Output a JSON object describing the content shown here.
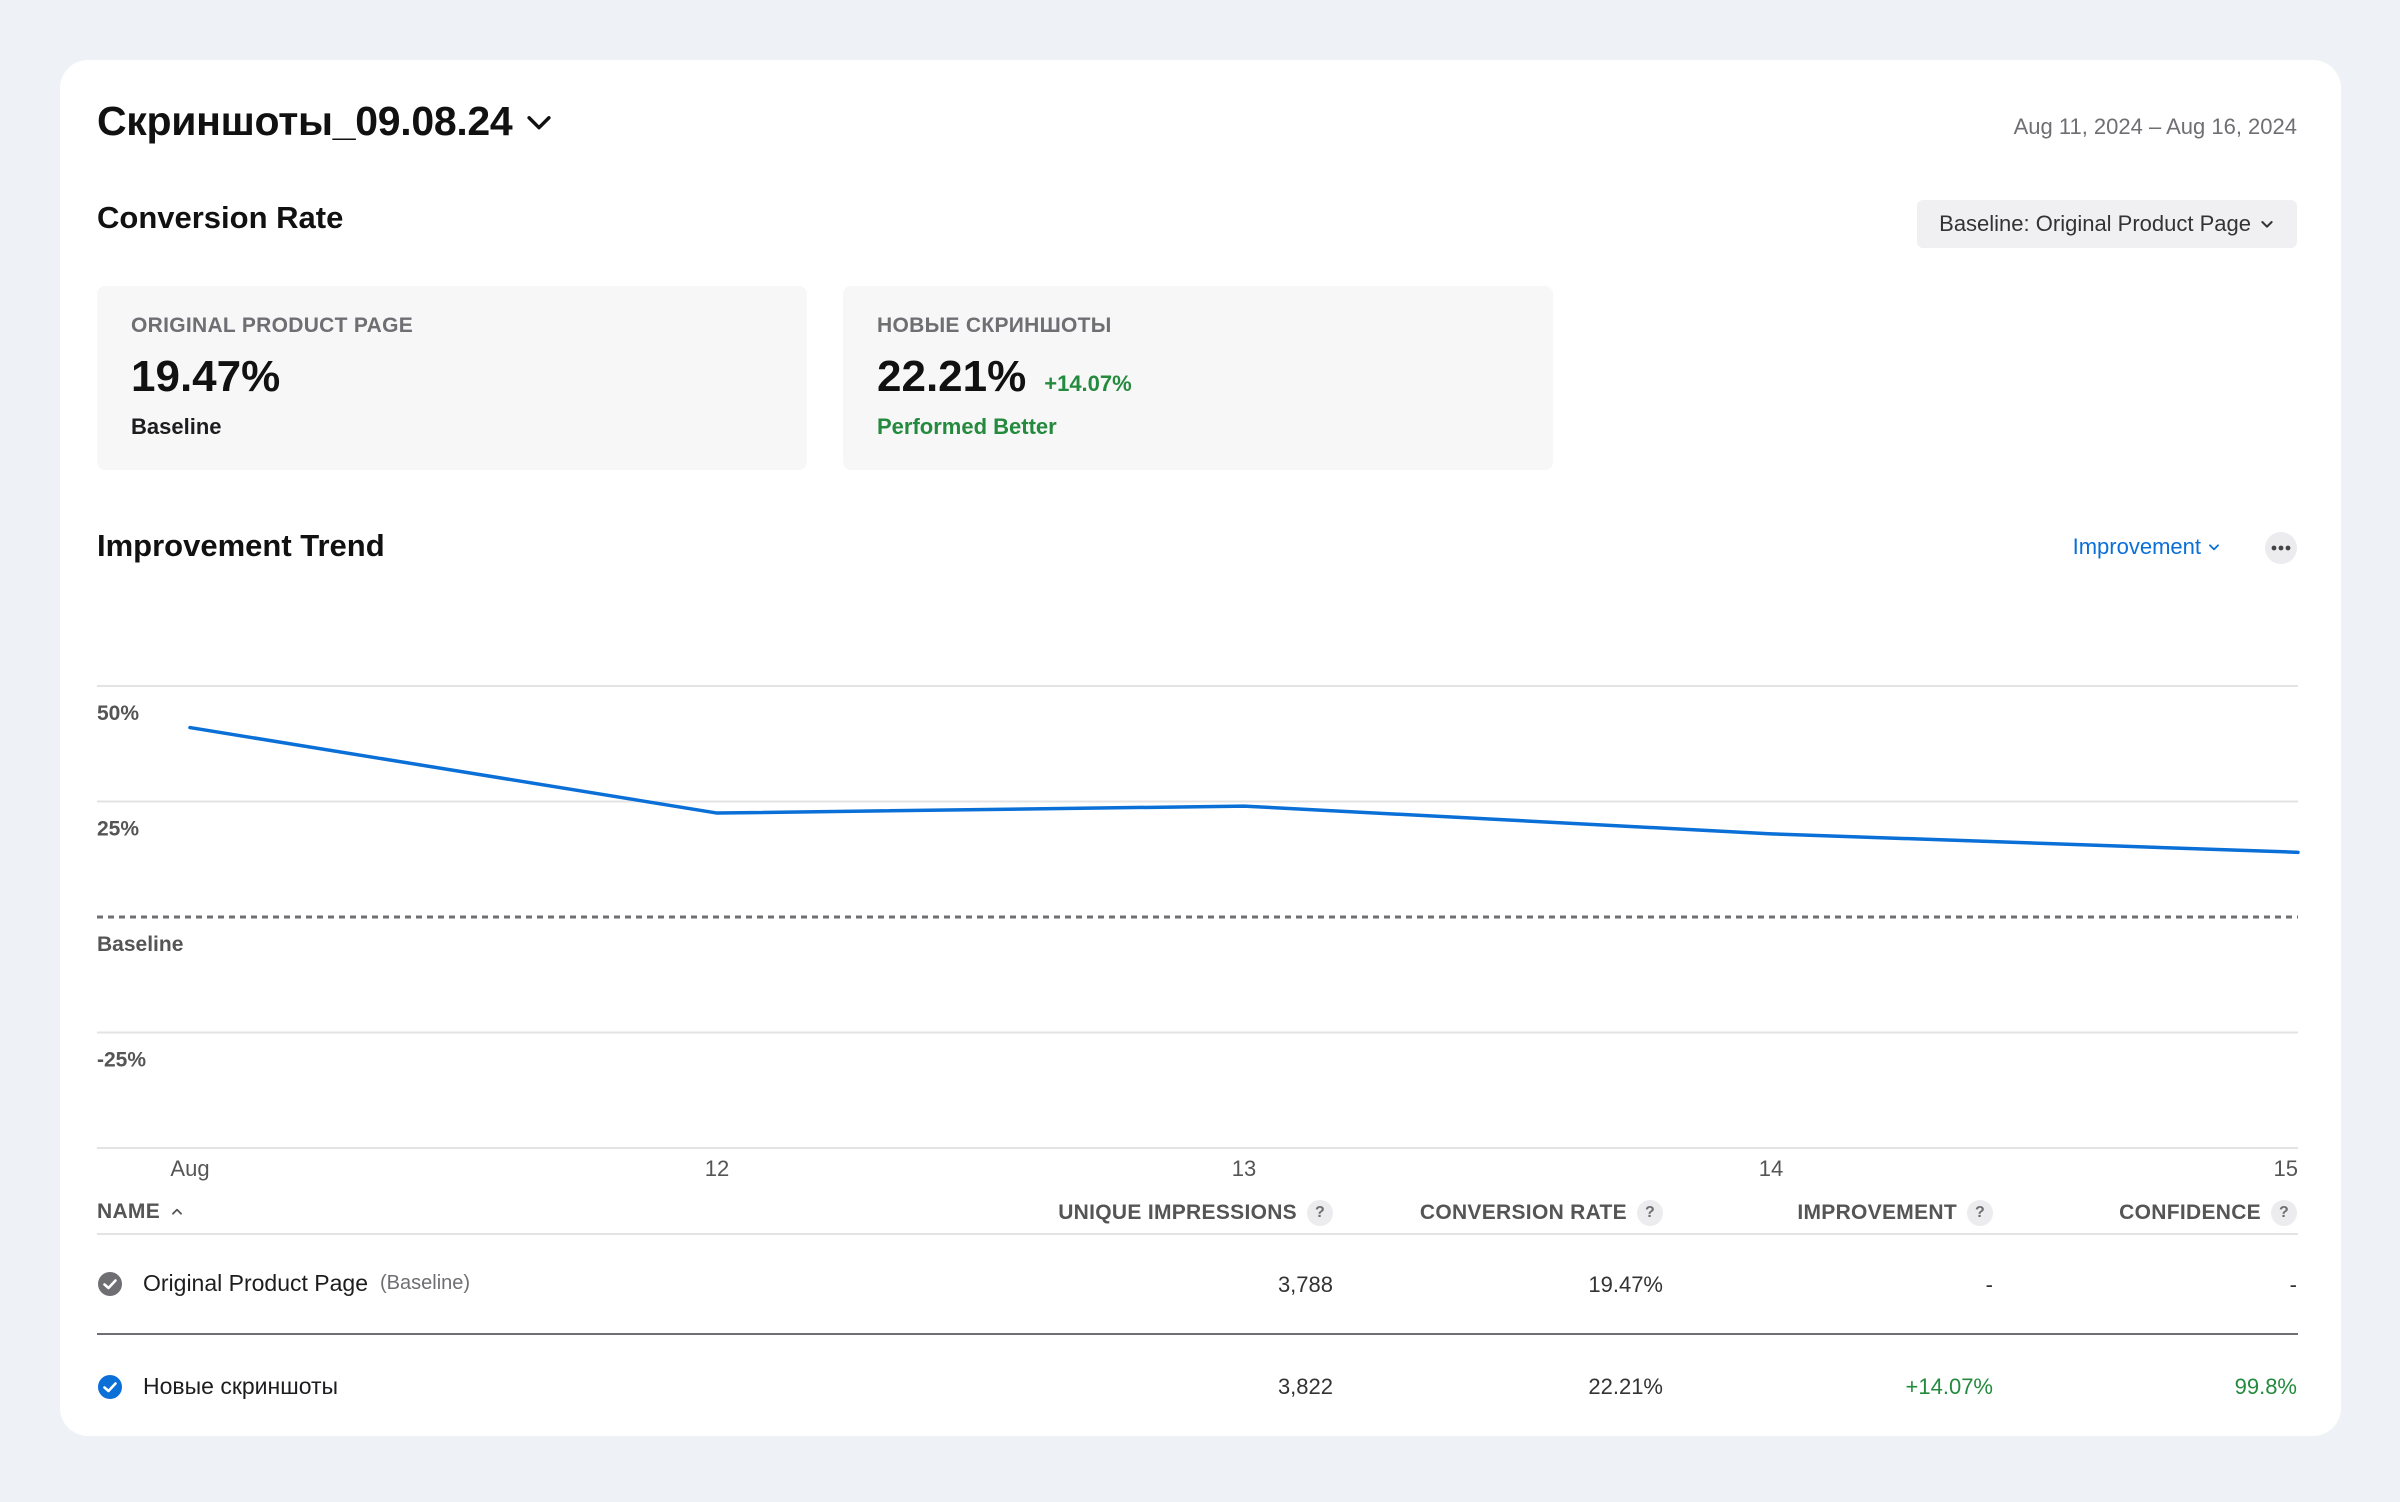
{
  "header": {
    "title": "Скриншоты_09.08.24",
    "date_range": "Aug 11, 2024 – Aug 16, 2024"
  },
  "conversion": {
    "section_title": "Conversion Rate",
    "baseline_select": "Baseline: Original Product Page",
    "cards": [
      {
        "label": "ORIGINAL PRODUCT PAGE",
        "value": "19.47%",
        "delta": "",
        "sub": "Baseline"
      },
      {
        "label": "НОВЫЕ СКРИНШОТЫ",
        "value": "22.21%",
        "delta": "+14.07%",
        "sub": "Performed Better"
      }
    ]
  },
  "trend": {
    "section_title": "Improvement Trend",
    "metric_select": "Improvement",
    "more_icon": "ellipsis-icon"
  },
  "chart_data": {
    "type": "line",
    "x": [
      "Aug 11",
      "Aug 12",
      "Aug 13",
      "Aug 14",
      "Aug 15"
    ],
    "x_tick_labels": [
      "Aug",
      "12",
      "13",
      "14",
      "15"
    ],
    "y_tick_labels": [
      "50%",
      "25%",
      "Baseline",
      "-25%"
    ],
    "y_ticks": [
      50,
      25,
      0,
      -25
    ],
    "ylim": [
      -50,
      50
    ],
    "series": [
      {
        "values": [
          41,
          22.5,
          24,
          18,
          14
        ],
        "color": "#0a6fd6"
      }
    ],
    "baseline_value": 0,
    "grid": true
  },
  "table": {
    "columns": [
      {
        "label": "NAME",
        "sort_icon": "chevron-up-icon"
      },
      {
        "label": "UNIQUE IMPRESSIONS",
        "help": "?"
      },
      {
        "label": "CONVERSION RATE",
        "help": "?"
      },
      {
        "label": "IMPROVEMENT",
        "help": "?"
      },
      {
        "label": "CONFIDENCE",
        "help": "?"
      }
    ],
    "rows": [
      {
        "name": "Original Product Page",
        "tag": "(Baseline)",
        "impressions": "3,788",
        "conversion": "19.47%",
        "improvement": "-",
        "confidence": "-",
        "check_color": "#6e6e73"
      },
      {
        "name": "Новые скриншоты",
        "tag": "",
        "impressions": "3,822",
        "conversion": "22.21%",
        "improvement": "+14.07%",
        "confidence": "99.8%",
        "check_color": "#0a6fd6"
      }
    ]
  },
  "colors": {
    "accent": "#0a6fd6",
    "positive": "#248a3d"
  }
}
